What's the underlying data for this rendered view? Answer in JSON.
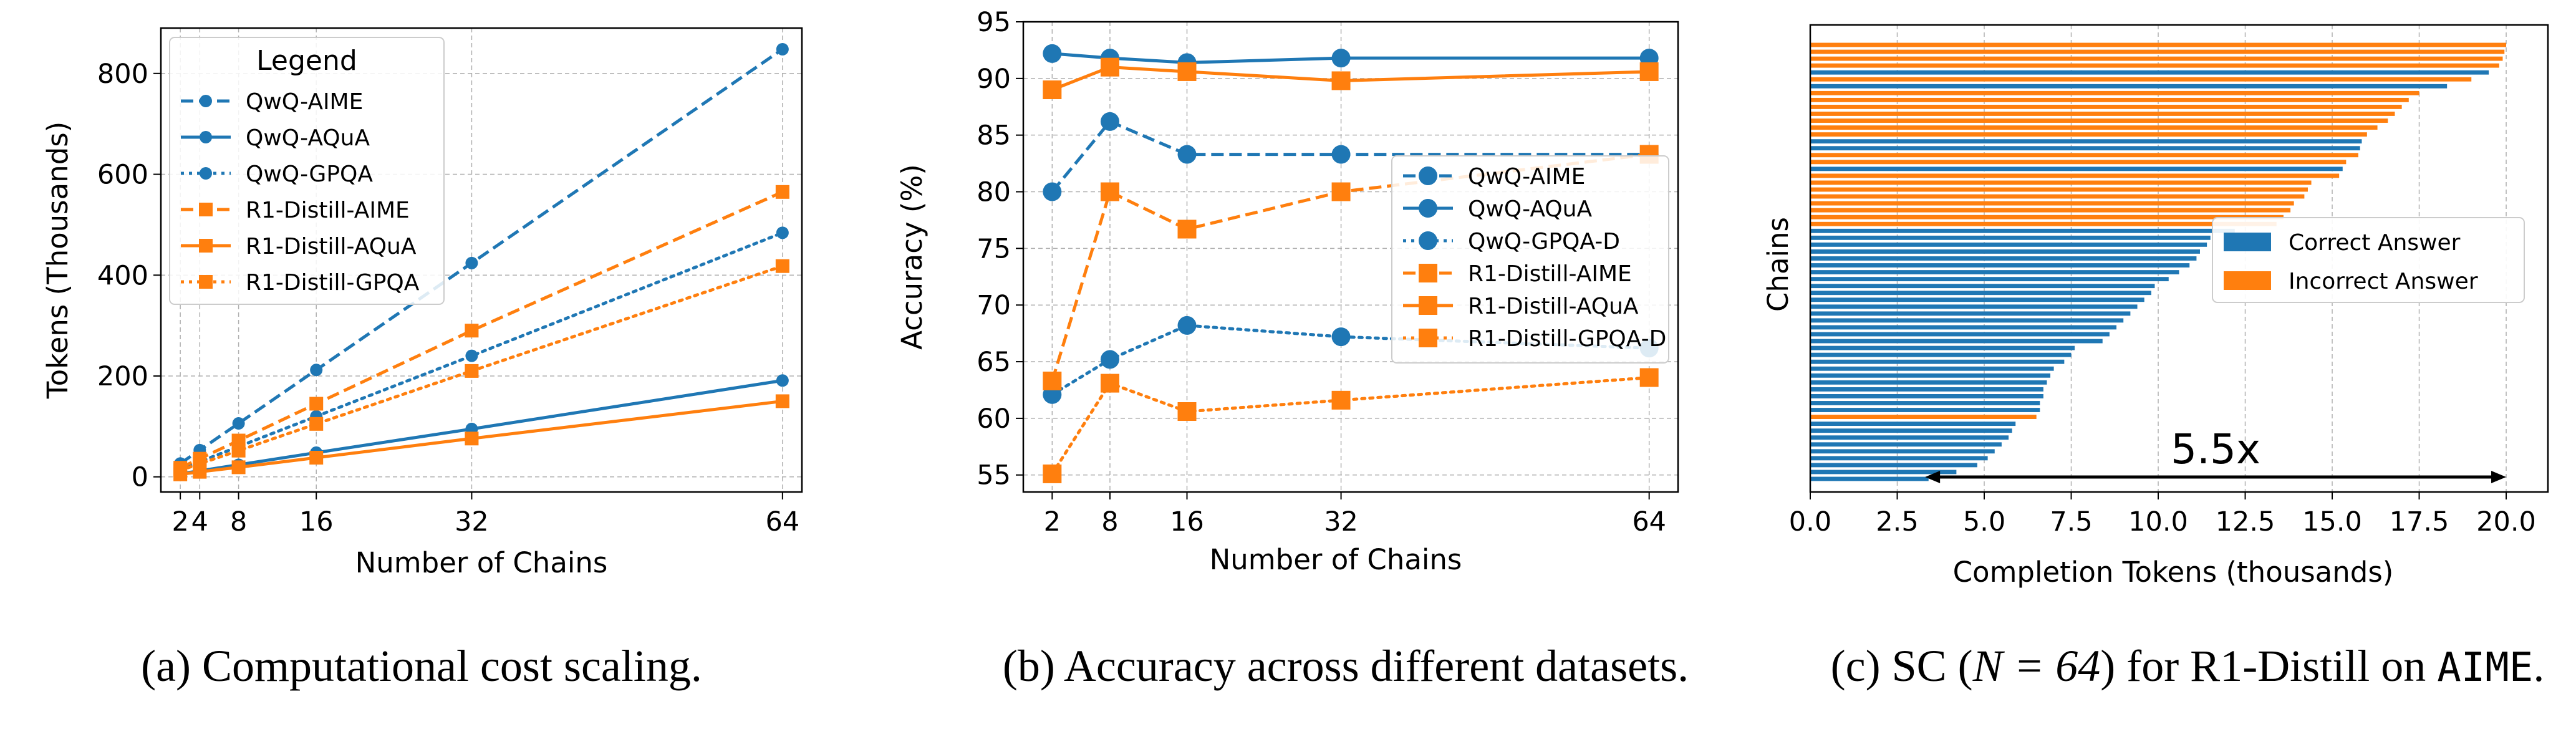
{
  "colors": {
    "blue": "#1f77b4",
    "orange": "#ff7f0e",
    "grid": "#b0b0b0"
  },
  "chart_data": [
    {
      "type": "line",
      "title": "",
      "xlabel": "Number of Chains",
      "ylabel": "Tokens (Thousands)",
      "x": [
        2,
        4,
        8,
        16,
        32,
        64
      ],
      "xticks": [
        2,
        4,
        8,
        16,
        32,
        64
      ],
      "xtick_labels": [
        "2",
        "4",
        "8",
        "16",
        "32",
        "64"
      ],
      "xlim": [
        0,
        66
      ],
      "ylim": [
        -30,
        890
      ],
      "yticks": [
        0,
        200,
        400,
        600,
        800
      ],
      "legend_title": "Legend",
      "legend_position": "upper-left",
      "grid": true,
      "series": [
        {
          "name": "QwQ-AIME",
          "color": "blue",
          "linestyle": "dashed",
          "marker": "circle",
          "values": [
            26.5,
            53,
            106,
            212,
            424,
            848
          ]
        },
        {
          "name": "QwQ-AQuA",
          "color": "blue",
          "linestyle": "solid",
          "marker": "circle",
          "values": [
            6,
            12,
            24,
            48,
            95,
            191
          ]
        },
        {
          "name": "QwQ-GPQA",
          "color": "blue",
          "linestyle": "dotted",
          "marker": "circle",
          "values": [
            15,
            30,
            60,
            120,
            240,
            484
          ]
        },
        {
          "name": "R1-Distill-AIME",
          "color": "orange",
          "linestyle": "dashed",
          "marker": "square",
          "values": [
            18,
            36,
            72,
            145,
            290,
            565
          ]
        },
        {
          "name": "R1-Distill-AQuA",
          "color": "orange",
          "linestyle": "solid",
          "marker": "square",
          "values": [
            5,
            10,
            19,
            38,
            76,
            150
          ]
        },
        {
          "name": "R1-Distill-GPQA",
          "color": "orange",
          "linestyle": "dotted",
          "marker": "square",
          "values": [
            13,
            26,
            52,
            105,
            210,
            418
          ]
        }
      ],
      "caption": "(a) Computational cost scaling."
    },
    {
      "type": "line",
      "title": "",
      "xlabel": "Number of Chains",
      "ylabel": "Accuracy (%)",
      "x": [
        2,
        8,
        16,
        32,
        64
      ],
      "xticks": [
        2,
        8,
        16,
        32,
        64
      ],
      "xtick_labels": [
        "2",
        "8",
        "16",
        "32",
        "64"
      ],
      "xlim": [
        -1,
        67
      ],
      "ylim": [
        53.5,
        95
      ],
      "yticks": [
        55,
        60,
        65,
        70,
        75,
        80,
        85,
        90,
        95
      ],
      "legend_position": "center-right",
      "grid": true,
      "series": [
        {
          "name": "QwQ-AIME",
          "color": "blue",
          "linestyle": "dashed",
          "marker": "circle",
          "values": [
            80,
            86.2,
            83.3,
            83.3,
            83.3
          ]
        },
        {
          "name": "QwQ-AQuA",
          "color": "blue",
          "linestyle": "solid",
          "marker": "circle",
          "values": [
            92.2,
            91.8,
            91.4,
            91.8,
            91.8
          ]
        },
        {
          "name": "QwQ-GPQA-D",
          "color": "blue",
          "linestyle": "dotted",
          "marker": "circle",
          "values": [
            62.1,
            65.2,
            68.2,
            67.2,
            66.2
          ]
        },
        {
          "name": "R1-Distill-AIME",
          "color": "orange",
          "linestyle": "dashed",
          "marker": "square",
          "values": [
            63.3,
            80,
            76.7,
            80,
            83.3
          ]
        },
        {
          "name": "R1-Distill-AQuA",
          "color": "orange",
          "linestyle": "solid",
          "marker": "square",
          "values": [
            89,
            91,
            90.6,
            89.8,
            90.6
          ]
        },
        {
          "name": "R1-Distill-GPQA-D",
          "color": "orange",
          "linestyle": "dotted",
          "marker": "square",
          "values": [
            55.1,
            63.1,
            60.6,
            61.6,
            63.6
          ]
        }
      ],
      "caption": "(b) Accuracy across different datasets."
    },
    {
      "type": "bar",
      "orientation": "horizontal",
      "title": "",
      "xlabel": "Completion Tokens (thousands)",
      "ylabel": "Chains",
      "xlim": [
        0,
        21.2
      ],
      "xticks": [
        0,
        2.5,
        5,
        7.5,
        10,
        12.5,
        15,
        17.5,
        20
      ],
      "xtick_labels": [
        "0.0",
        "2.5",
        "5.0",
        "7.5",
        "10.0",
        "12.5",
        "15.0",
        "17.5",
        "20.0"
      ],
      "legend_position": "center-right",
      "grid": true,
      "series": [
        {
          "name": "Correct Answer",
          "color": "blue"
        },
        {
          "name": "Incorrect Answer",
          "color": "orange"
        }
      ],
      "values_top_to_bottom": [
        20.0,
        19.95,
        19.9,
        19.8,
        19.5,
        19.0,
        18.3,
        17.5,
        17.2,
        17.0,
        16.8,
        16.6,
        16.3,
        16.0,
        15.85,
        15.8,
        15.75,
        15.4,
        15.3,
        15.2,
        14.4,
        14.3,
        14.2,
        13.9,
        13.8,
        13.6,
        13.4,
        12.2,
        11.5,
        11.4,
        11.2,
        11.1,
        10.9,
        10.6,
        10.3,
        9.9,
        9.8,
        9.6,
        9.4,
        9.2,
        9.0,
        8.8,
        8.6,
        8.4,
        7.6,
        7.5,
        7.3,
        7.0,
        6.9,
        6.8,
        6.7,
        6.7,
        6.6,
        6.6,
        6.5,
        5.9,
        5.8,
        5.7,
        5.5,
        5.3,
        5.1,
        4.8,
        4.2,
        3.4
      ],
      "correct_flags_top_to_bottom": [
        false,
        false,
        false,
        false,
        true,
        false,
        true,
        false,
        false,
        false,
        false,
        false,
        false,
        false,
        true,
        true,
        false,
        false,
        true,
        false,
        false,
        false,
        false,
        false,
        false,
        false,
        false,
        true,
        true,
        true,
        true,
        true,
        true,
        true,
        true,
        true,
        true,
        true,
        true,
        true,
        true,
        true,
        true,
        true,
        true,
        true,
        true,
        true,
        true,
        true,
        true,
        true,
        true,
        true,
        false,
        true,
        true,
        true,
        true,
        true,
        true,
        true,
        true,
        true
      ],
      "annotation": {
        "text": "5.5x",
        "from": 3.3,
        "to": 20.0
      },
      "caption_prefix": "(c) SC (",
      "caption_math": "N = 64",
      "caption_mid": ") for R1-Distill on ",
      "caption_code": "AIME",
      "caption_suffix": "."
    }
  ]
}
